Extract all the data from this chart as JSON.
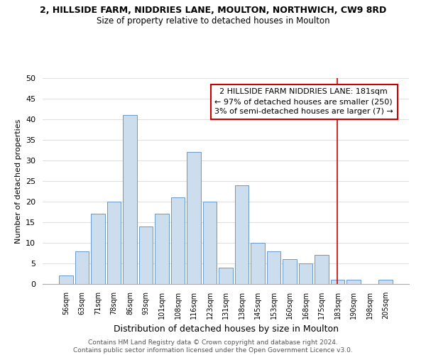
{
  "title": "2, HILLSIDE FARM, NIDDRIES LANE, MOULTON, NORTHWICH, CW9 8RD",
  "subtitle": "Size of property relative to detached houses in Moulton",
  "xlabel": "Distribution of detached houses by size in Moulton",
  "ylabel": "Number of detached properties",
  "bar_color": "#ccdded",
  "bar_edge_color": "#6699cc",
  "bin_labels": [
    "56sqm",
    "63sqm",
    "71sqm",
    "78sqm",
    "86sqm",
    "93sqm",
    "101sqm",
    "108sqm",
    "116sqm",
    "123sqm",
    "131sqm",
    "138sqm",
    "145sqm",
    "153sqm",
    "160sqm",
    "168sqm",
    "175sqm",
    "183sqm",
    "190sqm",
    "198sqm",
    "205sqm"
  ],
  "bar_heights": [
    2,
    8,
    17,
    20,
    41,
    14,
    17,
    21,
    32,
    20,
    4,
    24,
    10,
    8,
    6,
    5,
    7,
    1,
    1,
    0,
    1
  ],
  "ylim": [
    0,
    50
  ],
  "yticks": [
    0,
    5,
    10,
    15,
    20,
    25,
    30,
    35,
    40,
    45,
    50
  ],
  "vline_x_index": 17,
  "vline_color": "#cc0000",
  "annotation_line1": "  2 HILLSIDE FARM NIDDRIES LANE: 181sqm",
  "annotation_line2": "← 97% of detached houses are smaller (250)",
  "annotation_line3": "3% of semi-detached houses are larger (7) →",
  "annotation_box_color": "#ffffff",
  "annotation_box_edge": "#cc0000",
  "footer_line1": "Contains HM Land Registry data © Crown copyright and database right 2024.",
  "footer_line2": "Contains public sector information licensed under the Open Government Licence v3.0.",
  "background_color": "#ffffff",
  "grid_color": "#e0e0e0"
}
